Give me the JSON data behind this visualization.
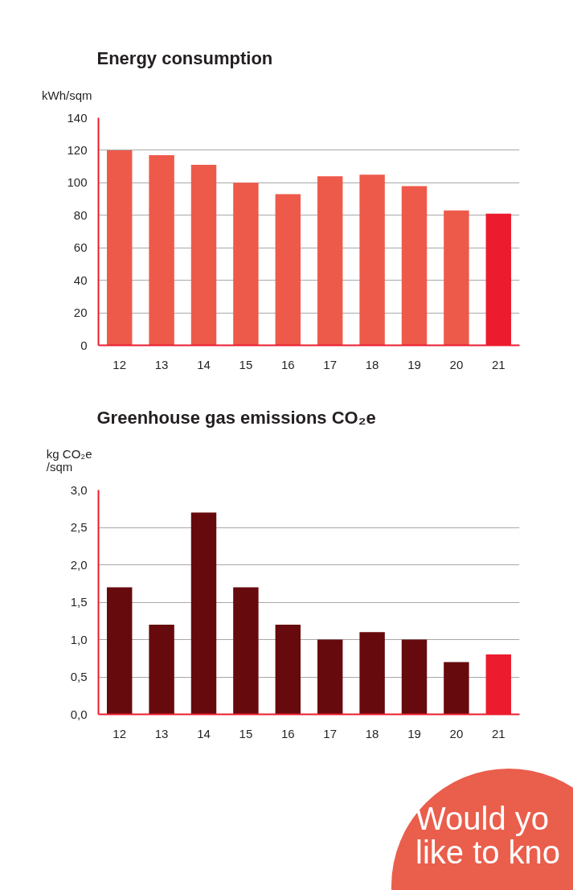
{
  "chart_data": [
    {
      "type": "bar",
      "title": "Energy consumption",
      "ylabel": "kWh/sqm",
      "categories": [
        "12",
        "13",
        "14",
        "15",
        "16",
        "17",
        "18",
        "19",
        "20",
        "21"
      ],
      "values": [
        120,
        117,
        111,
        100,
        93,
        104,
        105,
        98,
        83,
        81
      ],
      "colors": [
        "#ee5a4a",
        "#ee5a4a",
        "#ee5a4a",
        "#ee5a4a",
        "#ee5a4a",
        "#ee5a4a",
        "#ee5a4a",
        "#ee5a4a",
        "#ee5a4a",
        "#ec1c2e"
      ],
      "ylim": [
        0,
        140
      ],
      "yticks": [
        0,
        20,
        40,
        60,
        80,
        100,
        120,
        140
      ],
      "grid": "y"
    },
    {
      "type": "bar",
      "title": "Greenhouse gas emissions CO₂e",
      "ylabel": "kg CO₂e\n/sqm",
      "categories": [
        "12",
        "13",
        "14",
        "15",
        "16",
        "17",
        "18",
        "19",
        "20",
        "21"
      ],
      "values": [
        1.7,
        1.2,
        2.7,
        1.7,
        1.2,
        1.0,
        1.1,
        1.0,
        0.7,
        0.8
      ],
      "colors": [
        "#670a0d",
        "#670a0d",
        "#670a0d",
        "#670a0d",
        "#670a0d",
        "#670a0d",
        "#670a0d",
        "#670a0d",
        "#670a0d",
        "#ec1c2e"
      ],
      "ylim": [
        0,
        3.0
      ],
      "yticks": [
        {
          "value": 0,
          "label": "0,0"
        },
        {
          "value": 0.5,
          "label": "0,5"
        },
        {
          "value": 1.0,
          "label": "1,0"
        },
        {
          "value": 1.5,
          "label": "1,5"
        },
        {
          "value": 2.0,
          "label": "2,0"
        },
        {
          "value": 2.5,
          "label": "2,5"
        },
        {
          "value": 3.0,
          "label": "3,0"
        }
      ],
      "grid": "y",
      "annotations": [
        "Would yo\nlike to kno"
      ]
    }
  ]
}
